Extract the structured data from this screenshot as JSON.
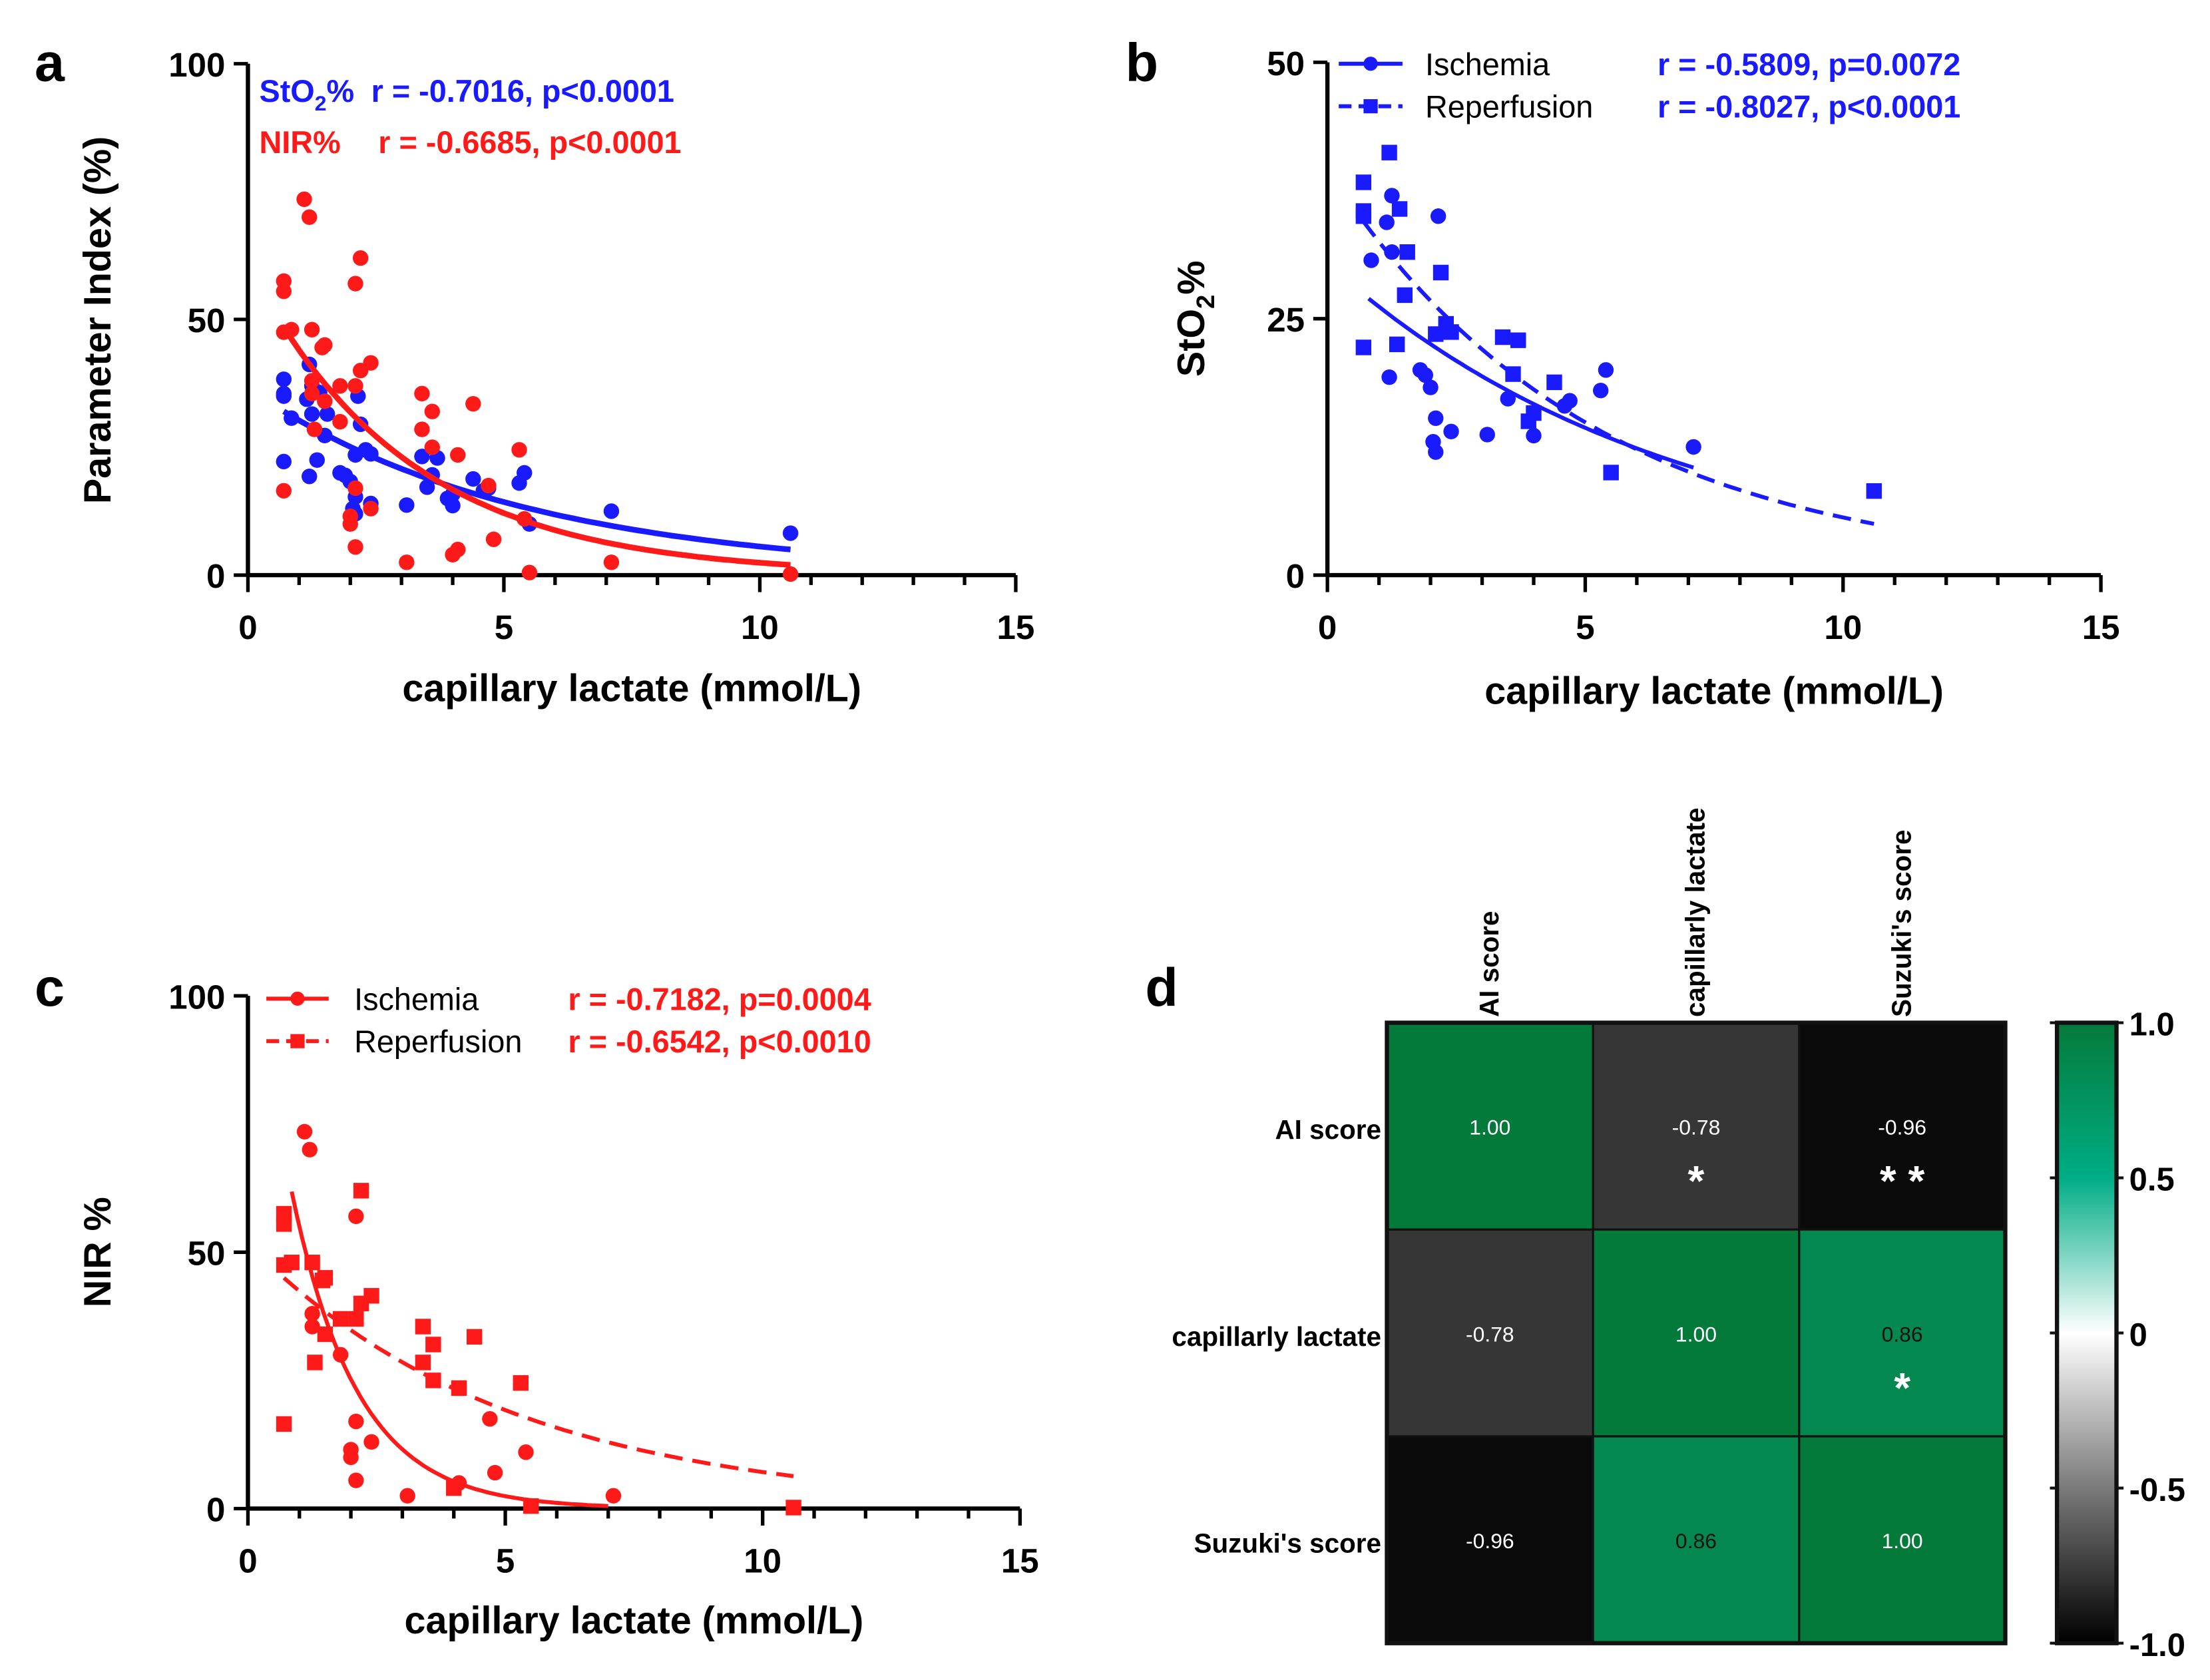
{
  "chart_data": [
    {
      "panel_label": "a",
      "type": "scatter",
      "xlabel": "capillary lactate (mmol/L)",
      "ylabel": "Parameter Index (%)",
      "xlim": [
        0,
        15
      ],
      "ylim": [
        0,
        100
      ],
      "xticks": [
        "0",
        "5",
        "10",
        "15"
      ],
      "yticks": [
        "0",
        "50",
        "100"
      ],
      "legend": [
        {
          "prefix": "StO",
          "sub": "2",
          "suffix": "%",
          "stat": "r = -0.7016, p<0.0001",
          "color": "#1a1aff"
        },
        {
          "prefix": "NIR%",
          "sub": "",
          "suffix": "",
          "stat": "r = -0.6685, p<0.0001",
          "color": "#ff1a1a"
        }
      ],
      "series": [
        {
          "name": "StO2%",
          "color": "#1a1aff",
          "marker": "circle",
          "points": [
            [
              0.85,
              30.7
            ],
            [
              1.15,
              34.4
            ],
            [
              1.25,
              37
            ],
            [
              1.25,
              31.5
            ],
            [
              1.2,
              19.3
            ],
            [
              1.8,
              20
            ],
            [
              1.9,
              19.5
            ],
            [
              2.0,
              18.3
            ],
            [
              2.05,
              13
            ],
            [
              2.1,
              15.3
            ],
            [
              2.1,
              12
            ],
            [
              2.15,
              35
            ],
            [
              2.4,
              14
            ],
            [
              3.1,
              13.7
            ],
            [
              3.5,
              17.2
            ],
            [
              4.0,
              13.6
            ],
            [
              4.6,
              16.5
            ],
            [
              4.7,
              17
            ],
            [
              5.3,
              18
            ],
            [
              5.4,
              20
            ],
            [
              7.1,
              12.5
            ],
            [
              0.7,
              38.3
            ],
            [
              0.7,
              35.5
            ],
            [
              0.7,
              35
            ],
            [
              0.7,
              22.2
            ],
            [
              1.2,
              41.2
            ],
            [
              1.35,
              22.5
            ],
            [
              1.4,
              35.7
            ],
            [
              1.5,
              27.3
            ],
            [
              1.55,
              31.5
            ],
            [
              2.1,
              23.5
            ],
            [
              2.2,
              29.5
            ],
            [
              2.3,
              24.5
            ],
            [
              2.4,
              23.7
            ],
            [
              3.4,
              23.2
            ],
            [
              3.6,
              19.6
            ],
            [
              3.7,
              22.9
            ],
            [
              3.9,
              15
            ],
            [
              4.0,
              15.8
            ],
            [
              4.4,
              18.8
            ],
            [
              5.5,
              10
            ],
            [
              10.6,
              8.2
            ]
          ],
          "fit": {
            "model": "exponential",
            "a": 36.5,
            "b": 0.1875,
            "x_range": [
              0.7,
              10.6
            ],
            "dashed": false
          }
        },
        {
          "name": "NIR%",
          "color": "#ff1a1a",
          "marker": "circle",
          "points": [
            [
              1.1,
              73.5
            ],
            [
              1.2,
              70
            ],
            [
              1.25,
              38
            ],
            [
              1.25,
              35.5
            ],
            [
              1.8,
              30
            ],
            [
              2.0,
              10
            ],
            [
              2.0,
              11.5
            ],
            [
              2.1,
              17
            ],
            [
              2.1,
              5.5
            ],
            [
              2.1,
              57
            ],
            [
              2.4,
              13
            ],
            [
              3.1,
              2.5
            ],
            [
              4.1,
              5
            ],
            [
              4.7,
              17.5
            ],
            [
              4.8,
              7
            ],
            [
              5.5,
              0.5
            ],
            [
              5.4,
              11
            ],
            [
              7.1,
              2.5
            ],
            [
              0.7,
              57.5
            ],
            [
              0.7,
              55.5
            ],
            [
              0.7,
              47.5
            ],
            [
              0.7,
              16.5
            ],
            [
              0.85,
              48
            ],
            [
              1.25,
              48
            ],
            [
              1.3,
              28.5
            ],
            [
              1.45,
              44.5
            ],
            [
              1.5,
              45
            ],
            [
              1.5,
              34
            ],
            [
              1.8,
              37
            ],
            [
              2.1,
              37
            ],
            [
              2.2,
              40
            ],
            [
              2.2,
              62
            ],
            [
              2.4,
              41.5
            ],
            [
              3.4,
              35.5
            ],
            [
              3.4,
              28.5
            ],
            [
              3.6,
              32
            ],
            [
              3.6,
              25
            ],
            [
              4.0,
              4
            ],
            [
              4.1,
              23.5
            ],
            [
              4.4,
              33.5
            ],
            [
              5.3,
              24.5
            ],
            [
              10.6,
              0.2
            ]
          ],
          "fit": {
            "model": "exponential",
            "a": 60.7,
            "b": 0.322,
            "x_range": [
              0.7,
              10.6
            ],
            "dashed": false
          }
        }
      ]
    },
    {
      "panel_label": "b",
      "type": "scatter",
      "xlabel": "capillary lactate (mmol/L)",
      "ylabel_prefix": "StO",
      "ylabel_sub": "2",
      "ylabel_suffix": "%",
      "xlim": [
        0,
        15
      ],
      "ylim": [
        0,
        50
      ],
      "xticks": [
        "0",
        "5",
        "10",
        "15"
      ],
      "yticks": [
        "0",
        "25",
        "50"
      ],
      "legend": [
        {
          "label": "Ischemia",
          "stat": "r = -0.5809, p=0.0072",
          "marker": "circle",
          "dashed": false
        },
        {
          "label": "Reperfusion",
          "stat": "r = -0.8027, p<0.0001",
          "marker": "square",
          "dashed": true
        }
      ],
      "series": [
        {
          "name": "Ischemia",
          "color": "#1a1aff",
          "marker": "circle",
          "points": [
            [
              0.85,
              30.7
            ],
            [
              1.15,
              34.4
            ],
            [
              1.25,
              37
            ],
            [
              1.25,
              31.5
            ],
            [
              1.2,
              19.3
            ],
            [
              1.8,
              20
            ],
            [
              1.9,
              19.5
            ],
            [
              2.0,
              18.3
            ],
            [
              2.05,
              13
            ],
            [
              2.1,
              15.3
            ],
            [
              2.1,
              12
            ],
            [
              2.15,
              35
            ],
            [
              2.4,
              14
            ],
            [
              3.1,
              13.7
            ],
            [
              3.5,
              17.2
            ],
            [
              4.0,
              13.6
            ],
            [
              4.6,
              16.5
            ],
            [
              4.7,
              17
            ],
            [
              5.3,
              18
            ],
            [
              5.4,
              20
            ],
            [
              7.1,
              12.5
            ]
          ],
          "fit": {
            "model": "exponential",
            "a": 30.4,
            "b": 0.15,
            "x_range": [
              0.8,
              7.1
            ],
            "dashed": false
          }
        },
        {
          "name": "Reperfusion",
          "color": "#1a1aff",
          "marker": "square",
          "points": [
            [
              0.7,
              38.3
            ],
            [
              0.7,
              35.5
            ],
            [
              0.7,
              35
            ],
            [
              0.7,
              22.2
            ],
            [
              1.2,
              41.2
            ],
            [
              1.35,
              22.5
            ],
            [
              1.4,
              35.7
            ],
            [
              1.5,
              27.3
            ],
            [
              1.55,
              31.5
            ],
            [
              2.1,
              23.5
            ],
            [
              2.2,
              29.5
            ],
            [
              2.3,
              24.5
            ],
            [
              2.4,
              23.7
            ],
            [
              3.4,
              23.2
            ],
            [
              3.6,
              19.6
            ],
            [
              3.7,
              22.9
            ],
            [
              3.9,
              15
            ],
            [
              4.0,
              15.8
            ],
            [
              4.4,
              18.8
            ],
            [
              5.5,
              10
            ],
            [
              10.6,
              8.2
            ]
          ],
          "fit": {
            "model": "exponential",
            "a": 39.5,
            "b": 0.195,
            "x_range": [
              0.7,
              10.6
            ],
            "dashed": true
          }
        }
      ]
    },
    {
      "panel_label": "c",
      "type": "scatter",
      "xlabel": "capillary lactate (mmol/L)",
      "ylabel": "NIR %",
      "xlim": [
        0,
        15
      ],
      "ylim": [
        0,
        100
      ],
      "xticks": [
        "0",
        "5",
        "10",
        "15"
      ],
      "yticks": [
        "0",
        "50",
        "100"
      ],
      "legend": [
        {
          "label": "Ischemia",
          "stat": "r = -0.7182, p=0.0004",
          "marker": "circle",
          "dashed": false
        },
        {
          "label": "Reperfusion",
          "stat": "r = -0.6542, p<0.0010",
          "marker": "square",
          "dashed": true
        }
      ],
      "series": [
        {
          "name": "Ischemia",
          "color": "#ff1a1a",
          "marker": "circle",
          "points": [
            [
              1.1,
              73.5
            ],
            [
              1.2,
              70
            ],
            [
              1.25,
              38
            ],
            [
              1.25,
              35.5
            ],
            [
              1.8,
              30
            ],
            [
              2.0,
              10
            ],
            [
              2.0,
              11.5
            ],
            [
              2.1,
              17
            ],
            [
              2.1,
              5.5
            ],
            [
              2.1,
              57
            ],
            [
              2.4,
              13
            ],
            [
              3.1,
              2.5
            ],
            [
              4.1,
              5
            ],
            [
              4.7,
              17.5
            ],
            [
              4.8,
              7
            ],
            [
              5.4,
              11
            ],
            [
              7.1,
              2.5
            ]
          ],
          "fit": {
            "model": "exponential",
            "a": 120,
            "b": 0.78,
            "x_range": [
              0.85,
              7.0
            ],
            "dashed": false
          }
        },
        {
          "name": "Reperfusion",
          "color": "#ff1a1a",
          "marker": "square",
          "points": [
            [
              0.7,
              57.5
            ],
            [
              0.7,
              55.5
            ],
            [
              0.7,
              47.5
            ],
            [
              0.7,
              16.5
            ],
            [
              0.85,
              48
            ],
            [
              1.25,
              48
            ],
            [
              1.3,
              28.5
            ],
            [
              1.45,
              44.5
            ],
            [
              1.5,
              45
            ],
            [
              1.5,
              34
            ],
            [
              1.8,
              37
            ],
            [
              2.1,
              37
            ],
            [
              2.2,
              40
            ],
            [
              2.2,
              62
            ],
            [
              2.4,
              41.5
            ],
            [
              3.4,
              35.5
            ],
            [
              3.4,
              28.5
            ],
            [
              3.6,
              32
            ],
            [
              3.6,
              25
            ],
            [
              4.0,
              4
            ],
            [
              4.1,
              23.5
            ],
            [
              4.4,
              33.5
            ],
            [
              5.3,
              24.5
            ],
            [
              5.5,
              0.5
            ],
            [
              10.6,
              0.2
            ]
          ],
          "fit": {
            "model": "exponential",
            "a": 51.7,
            "b": 0.198,
            "x_range": [
              0.7,
              10.6
            ],
            "dashed": true
          }
        }
      ]
    },
    {
      "panel_label": "d",
      "type": "heatmap",
      "rows": [
        "AI score",
        "capillarly lactate",
        "Suzuki's score"
      ],
      "cols": [
        "AI score",
        "capillarly lactate",
        "Suzuki's score"
      ],
      "values": [
        [
          1.0,
          -0.78,
          -0.96
        ],
        [
          -0.78,
          1.0,
          0.86
        ],
        [
          -0.96,
          0.86,
          1.0
        ]
      ],
      "labels": [
        [
          "1.00",
          "-0.78",
          "-0.96"
        ],
        [
          "-0.78",
          "1.00",
          "0.86"
        ],
        [
          "-0.96",
          "0.86",
          "1.00"
        ]
      ],
      "significance": [
        [
          "",
          "*",
          "* *"
        ],
        [
          "",
          "",
          "*"
        ],
        [
          "",
          "",
          ""
        ]
      ],
      "colorbar": {
        "range": [
          -1.0,
          1.0
        ],
        "ticks": [
          "1.0",
          "0.5",
          "0",
          "-0.5",
          "-1.0"
        ],
        "colors": {
          "1.0": "#047a3a",
          "0.5": "#00ad85",
          "0": "#ffffff",
          "-0.5": "#7a7a7a",
          "-1.0": "#000000"
        }
      }
    }
  ]
}
